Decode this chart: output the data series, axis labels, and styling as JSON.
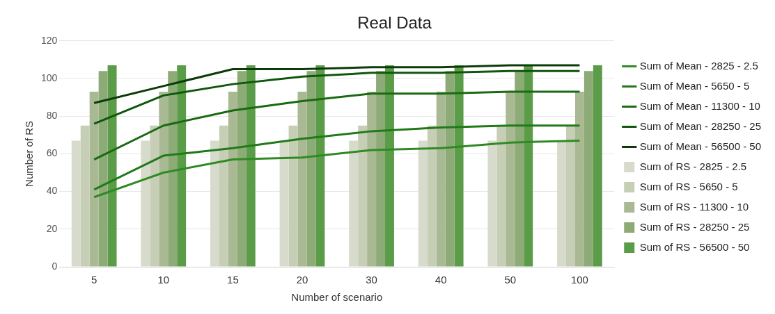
{
  "chart_data": {
    "type": "bar",
    "title": "Real Data",
    "xlabel": "Number of scenario",
    "ylabel": "Number of RS",
    "categories": [
      "5",
      "10",
      "15",
      "20",
      "30",
      "40",
      "50",
      "100"
    ],
    "ylim": [
      0,
      120
    ],
    "yticks": [
      0,
      20,
      40,
      60,
      80,
      100,
      120
    ],
    "grid": "y",
    "legend": "right",
    "series": [
      {
        "name": "Sum of RS - 2825 - 2.5",
        "color": "#d6dbcb",
        "values": [
          67,
          67,
          67,
          67,
          67,
          67,
          67,
          67
        ]
      },
      {
        "name": "Sum of RS - 5650 - 5",
        "color": "#c6ceb6",
        "values": [
          75,
          75,
          75,
          75,
          75,
          75,
          75,
          75
        ]
      },
      {
        "name": "Sum of RS - 11300 - 10",
        "color": "#a8b993",
        "values": [
          93,
          93,
          93,
          93,
          93,
          93,
          93,
          93
        ]
      },
      {
        "name": "Sum of RS - 28250 - 25",
        "color": "#8dab76",
        "values": [
          104,
          104,
          104,
          104,
          104,
          104,
          104,
          104
        ]
      },
      {
        "name": "Sum of RS - 56500 - 50",
        "color": "#5a9c48",
        "values": [
          107,
          107,
          107,
          107,
          107,
          107,
          107,
          107
        ]
      },
      {
        "type": "line",
        "name": "Sum of Mean - 2825 - 2.5",
        "color": "#2f8a24",
        "values": [
          37,
          50,
          57,
          58,
          62,
          63,
          66,
          67
        ]
      },
      {
        "type": "line",
        "name": "Sum of Mean - 5650 - 5",
        "color": "#217a18",
        "values": [
          41,
          59,
          63,
          68,
          72,
          74,
          75,
          75
        ]
      },
      {
        "type": "line",
        "name": "Sum of Mean - 11300 - 10",
        "color": "#196a12",
        "values": [
          57,
          75,
          83,
          88,
          92,
          92,
          93,
          93
        ]
      },
      {
        "type": "line",
        "name": "Sum of Mean - 28250 - 25",
        "color": "#10560c",
        "values": [
          76,
          91,
          97,
          101,
          103,
          103,
          104,
          104
        ]
      },
      {
        "type": "line",
        "name": "Sum of Mean - 56500 - 50",
        "color": "#0b3b08",
        "values": [
          87,
          96,
          105,
          105,
          106,
          106,
          107,
          107
        ]
      }
    ]
  }
}
